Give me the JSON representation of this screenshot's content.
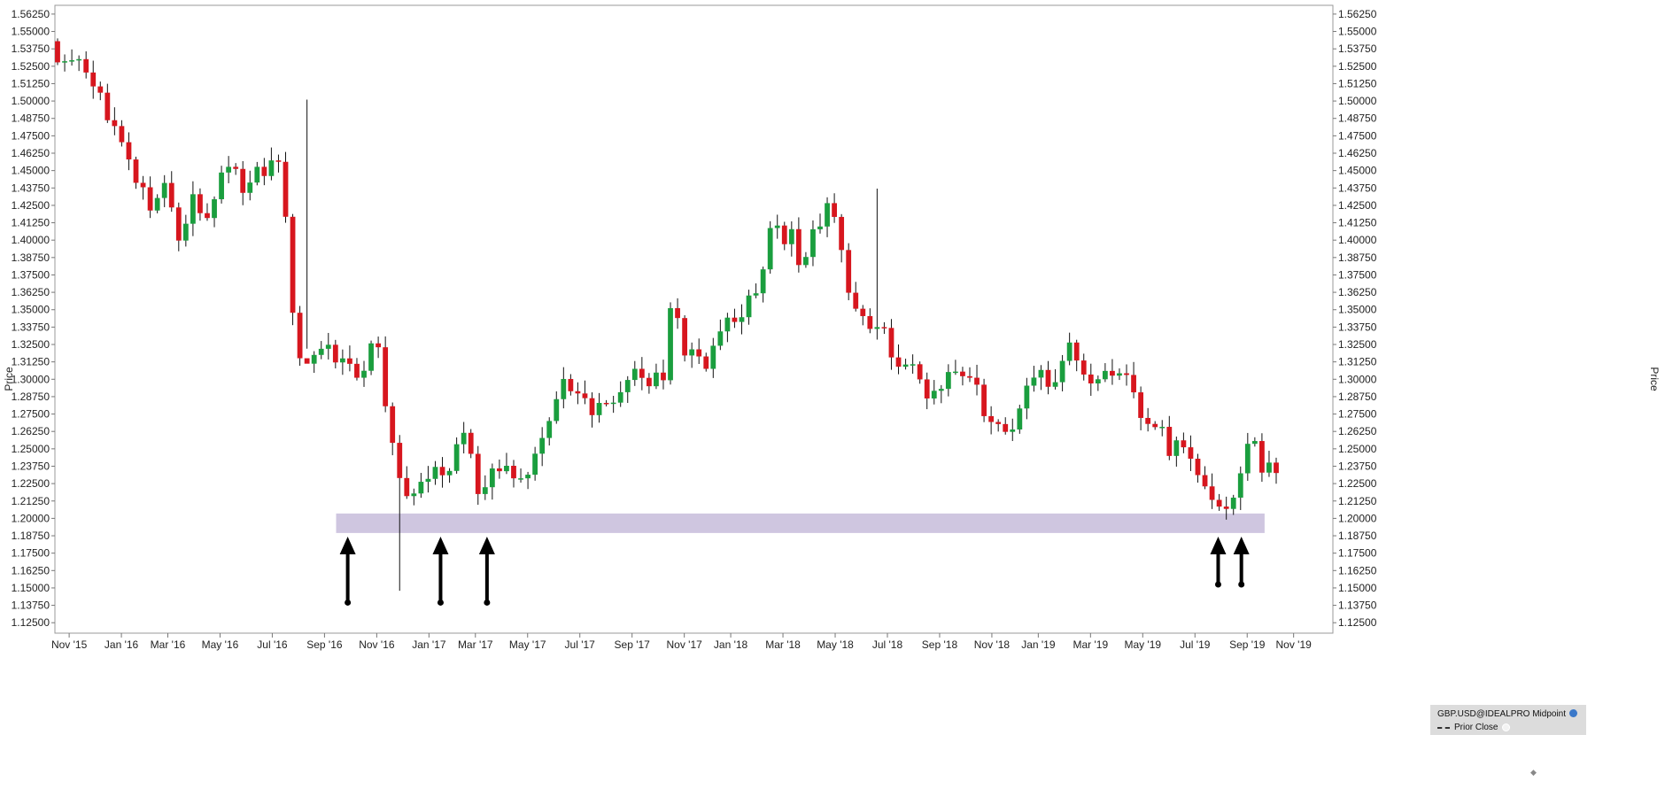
{
  "chart_data": {
    "type": "candlestick",
    "title": "",
    "ylabel": "Price",
    "xlabel": "",
    "ylim": [
      1.1175,
      1.5688
    ],
    "y_ticks": [
      "1.12500",
      "1.13750",
      "1.15000",
      "1.16250",
      "1.17500",
      "1.18750",
      "1.20000",
      "1.21250",
      "1.22500",
      "1.23750",
      "1.25000",
      "1.26250",
      "1.27500",
      "1.28750",
      "1.30000",
      "1.31250",
      "1.32500",
      "1.33750",
      "1.35000",
      "1.36250",
      "1.37500",
      "1.38750",
      "1.40000",
      "1.41250",
      "1.42500",
      "1.43750",
      "1.45000",
      "1.46250",
      "1.47500",
      "1.48750",
      "1.50000",
      "1.51250",
      "1.52500",
      "1.53750",
      "1.55000",
      "1.56250"
    ],
    "x_ticks": [
      {
        "label": "Nov '15",
        "week": 2
      },
      {
        "label": "Jan '16",
        "week": 11
      },
      {
        "label": "Mar '16",
        "week": 19
      },
      {
        "label": "May '16",
        "week": 28
      },
      {
        "label": "Jul '16",
        "week": 37
      },
      {
        "label": "Sep '16",
        "week": 46
      },
      {
        "label": "Nov '16",
        "week": 55
      },
      {
        "label": "Jan '17",
        "week": 64
      },
      {
        "label": "Mar '17",
        "week": 72
      },
      {
        "label": "May '17",
        "week": 81
      },
      {
        "label": "Jul '17",
        "week": 90
      },
      {
        "label": "Sep '17",
        "week": 99
      },
      {
        "label": "Nov '17",
        "week": 108
      },
      {
        "label": "Jan '18",
        "week": 116
      },
      {
        "label": "Mar '18",
        "week": 125
      },
      {
        "label": "May '18",
        "week": 134
      },
      {
        "label": "Jul '18",
        "week": 143
      },
      {
        "label": "Sep '18",
        "week": 152
      },
      {
        "label": "Nov '18",
        "week": 161
      },
      {
        "label": "Jan '19",
        "week": 169
      },
      {
        "label": "Mar '19",
        "week": 178
      },
      {
        "label": "May '19",
        "week": 187
      },
      {
        "label": "Jul '19",
        "week": 196
      },
      {
        "label": "Sep '19",
        "week": 205
      },
      {
        "label": "Nov '19",
        "week": 213
      }
    ],
    "candles": [],
    "support_zone": {
      "y_low": 1.1895,
      "y_high": 1.2035,
      "week_start": 48,
      "week_end": 208,
      "color": "#cfc6e0"
    },
    "arrows": [
      {
        "week": 50,
        "tip": 1.1945,
        "tail": 1.1395
      },
      {
        "week": 66,
        "tip": 1.1945,
        "tail": 1.1395
      },
      {
        "week": 74,
        "tip": 1.1945,
        "tail": 1.1395
      },
      {
        "week": 200,
        "tip": 1.1945,
        "tail": 1.1525
      },
      {
        "week": 204,
        "tip": 1.1945,
        "tail": 1.1525
      }
    ],
    "colors": {
      "up": "#1a9e3e",
      "down": "#d7161e",
      "wick": "#111111"
    }
  },
  "legend": {
    "instrument": "GBP.USD@IDEALPRO Midpoint",
    "prior_close": "Prior Close"
  }
}
